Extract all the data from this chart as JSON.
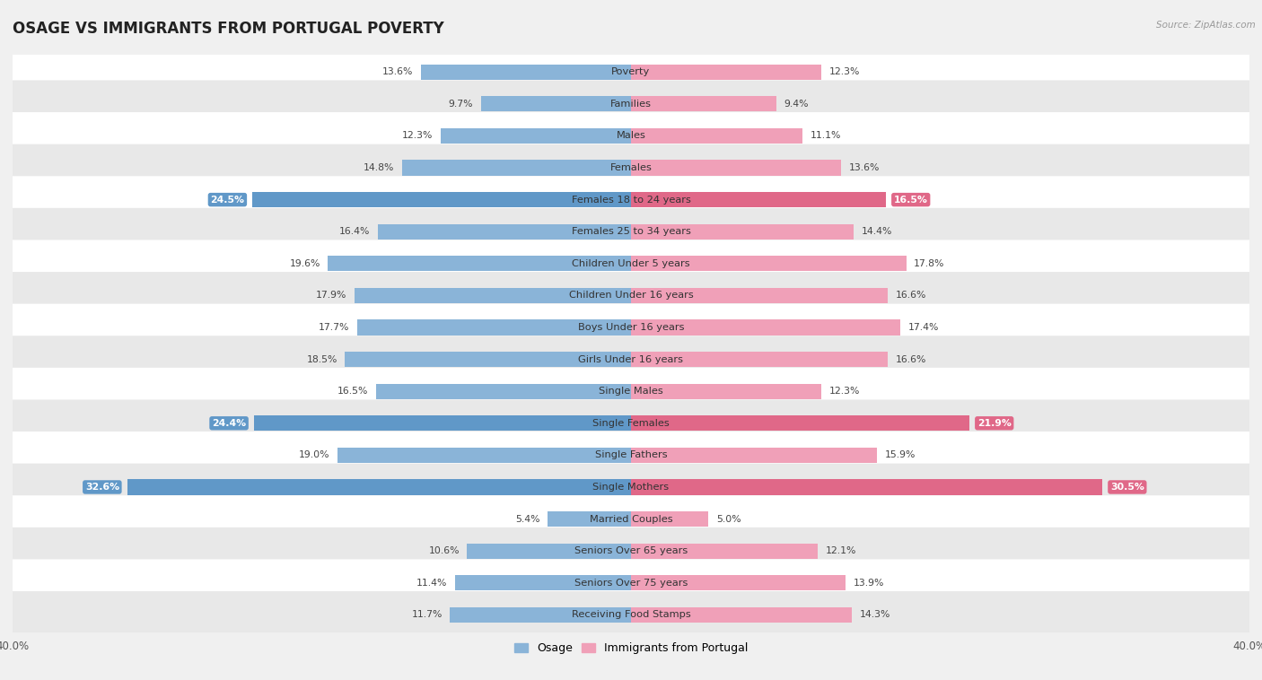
{
  "title": "OSAGE VS IMMIGRANTS FROM PORTUGAL POVERTY",
  "source": "Source: ZipAtlas.com",
  "categories": [
    "Poverty",
    "Families",
    "Males",
    "Females",
    "Females 18 to 24 years",
    "Females 25 to 34 years",
    "Children Under 5 years",
    "Children Under 16 years",
    "Boys Under 16 years",
    "Girls Under 16 years",
    "Single Males",
    "Single Females",
    "Single Fathers",
    "Single Mothers",
    "Married Couples",
    "Seniors Over 65 years",
    "Seniors Over 75 years",
    "Receiving Food Stamps"
  ],
  "osage_values": [
    13.6,
    9.7,
    12.3,
    14.8,
    24.5,
    16.4,
    19.6,
    17.9,
    17.7,
    18.5,
    16.5,
    24.4,
    19.0,
    32.6,
    5.4,
    10.6,
    11.4,
    11.7
  ],
  "portugal_values": [
    12.3,
    9.4,
    11.1,
    13.6,
    16.5,
    14.4,
    17.8,
    16.6,
    17.4,
    16.6,
    12.3,
    21.9,
    15.9,
    30.5,
    5.0,
    12.1,
    13.9,
    14.3
  ],
  "osage_color": "#8ab4d8",
  "portugal_color": "#f0a0b8",
  "osage_highlight_color": "#6098c8",
  "portugal_highlight_color": "#e06888",
  "highlight_indices": [
    4,
    11,
    13
  ],
  "axis_max": 40.0,
  "bar_height": 0.48,
  "bg_color": "#f0f0f0",
  "row_color_even": "#ffffff",
  "row_color_odd": "#e8e8e8",
  "legend_osage": "Osage",
  "legend_portugal": "Immigrants from Portugal",
  "title_fontsize": 12,
  "label_fontsize": 8.2,
  "value_fontsize": 7.8,
  "axis_label_fontsize": 8.5
}
